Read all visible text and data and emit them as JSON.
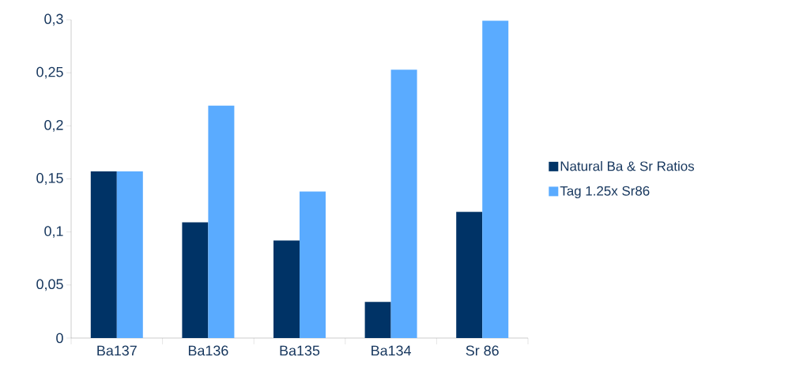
{
  "chart_data": {
    "type": "bar",
    "categories": [
      "Ba137",
      "Ba136",
      "Ba135",
      "Ba134",
      "Sr 86"
    ],
    "series": [
      {
        "name": "Natural Ba & Sr Ratios",
        "color": "#003366",
        "values": [
          0.157,
          0.109,
          0.092,
          0.034,
          0.119
        ]
      },
      {
        "name": "Tag 1.25x Sr86",
        "color": "#5aabff",
        "values": [
          0.157,
          0.219,
          0.138,
          0.253,
          0.299
        ]
      }
    ],
    "ylim": [
      0,
      0.3
    ],
    "yticks": [
      0,
      {
        "value": 0.05,
        "label": "0,05"
      },
      {
        "value": 0.1,
        "label": "0,1"
      },
      {
        "value": 0.15,
        "label": "0,15"
      },
      {
        "value": 0.2,
        "label": "0,2"
      },
      {
        "value": 0.25,
        "label": "0,25"
      },
      {
        "value": 0.3,
        "label": "0,3"
      }
    ],
    "legend": "right"
  }
}
